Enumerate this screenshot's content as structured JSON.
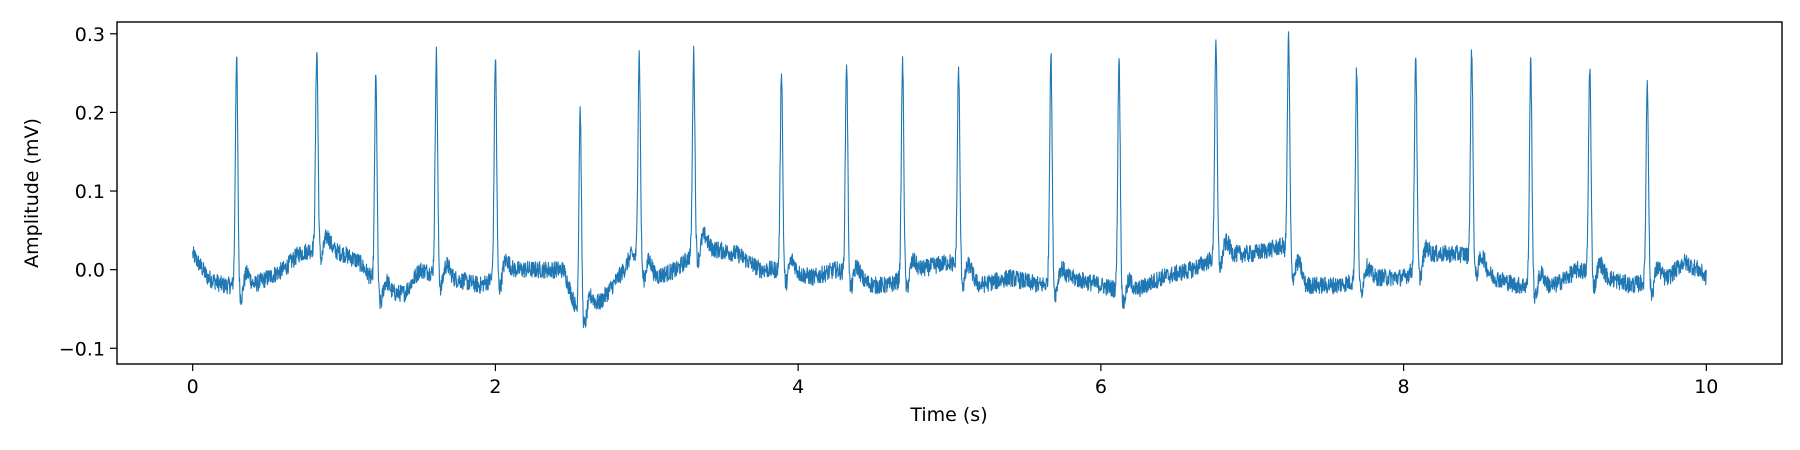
{
  "chart_data": {
    "type": "line",
    "title": "",
    "xlabel": "Time (s)",
    "ylabel": "Amplitude (mV)",
    "xlim": [
      -0.5,
      10.5
    ],
    "ylim": [
      -0.12,
      0.315
    ],
    "x_ticks": [
      0,
      2,
      4,
      6,
      8,
      10
    ],
    "x_tick_labels": [
      "0",
      "2",
      "4",
      "6",
      "8",
      "10"
    ],
    "y_ticks": [
      -0.1,
      0.0,
      0.1,
      0.2,
      0.3
    ],
    "y_tick_labels": [
      "−0.1",
      "0.0",
      "0.1",
      "0.2",
      "0.3"
    ],
    "grid": false,
    "legend": "none",
    "line_color": "#1f77b4",
    "series": [
      {
        "x_start": 0.0,
        "x_end": 10.0,
        "r_peaks": [
          {
            "t": 0.29,
            "amp": 0.27
          },
          {
            "t": 0.82,
            "amp": 0.28
          },
          {
            "t": 1.21,
            "amp": 0.245
          },
          {
            "t": 1.61,
            "amp": 0.275
          },
          {
            "t": 2.0,
            "amp": 0.27
          },
          {
            "t": 2.56,
            "amp": 0.205
          },
          {
            "t": 2.95,
            "amp": 0.275
          },
          {
            "t": 3.31,
            "amp": 0.275
          },
          {
            "t": 3.89,
            "amp": 0.255
          },
          {
            "t": 4.32,
            "amp": 0.265
          },
          {
            "t": 4.69,
            "amp": 0.265
          },
          {
            "t": 5.06,
            "amp": 0.255
          },
          {
            "t": 5.67,
            "amp": 0.275
          },
          {
            "t": 6.12,
            "amp": 0.27
          },
          {
            "t": 6.76,
            "amp": 0.295
          },
          {
            "t": 7.24,
            "amp": 0.295
          },
          {
            "t": 7.69,
            "amp": 0.255
          },
          {
            "t": 8.08,
            "amp": 0.275
          },
          {
            "t": 8.45,
            "amp": 0.28
          },
          {
            "t": 8.84,
            "amp": 0.265
          },
          {
            "t": 9.23,
            "amp": 0.26
          },
          {
            "t": 9.61,
            "amp": 0.24
          }
        ],
        "baseline": [
          [
            0.0,
            0.02
          ],
          [
            0.1,
            -0.01
          ],
          [
            0.2,
            -0.02
          ],
          [
            0.4,
            -0.02
          ],
          [
            0.6,
            0.0
          ],
          [
            0.7,
            0.02
          ],
          [
            0.85,
            0.03
          ],
          [
            1.0,
            0.02
          ],
          [
            1.1,
            0.01
          ],
          [
            1.25,
            -0.03
          ],
          [
            1.4,
            -0.03
          ],
          [
            1.5,
            0.0
          ],
          [
            1.7,
            -0.01
          ],
          [
            1.9,
            -0.02
          ],
          [
            2.1,
            0.0
          ],
          [
            2.3,
            0.0
          ],
          [
            2.45,
            0.0
          ],
          [
            2.55,
            -0.06
          ],
          [
            2.7,
            -0.04
          ],
          [
            2.85,
            0.0
          ],
          [
            2.9,
            0.02
          ],
          [
            3.05,
            -0.01
          ],
          [
            3.2,
            0.0
          ],
          [
            3.35,
            0.03
          ],
          [
            3.6,
            0.02
          ],
          [
            3.75,
            0.0
          ],
          [
            3.9,
            0.0
          ],
          [
            4.1,
            -0.01
          ],
          [
            4.25,
            0.0
          ],
          [
            4.5,
            -0.02
          ],
          [
            4.6,
            -0.02
          ],
          [
            4.8,
            0.0
          ],
          [
            5.0,
            0.01
          ],
          [
            5.2,
            -0.02
          ],
          [
            5.4,
            -0.01
          ],
          [
            5.6,
            -0.02
          ],
          [
            5.8,
            -0.01
          ],
          [
            6.0,
            -0.02
          ],
          [
            6.2,
            -0.03
          ],
          [
            6.4,
            -0.01
          ],
          [
            6.6,
            0.0
          ],
          [
            6.8,
            0.02
          ],
          [
            7.0,
            0.02
          ],
          [
            7.2,
            0.03
          ],
          [
            7.35,
            -0.02
          ],
          [
            7.55,
            -0.02
          ],
          [
            7.8,
            -0.01
          ],
          [
            8.0,
            -0.01
          ],
          [
            8.2,
            0.02
          ],
          [
            8.4,
            0.02
          ],
          [
            8.6,
            -0.01
          ],
          [
            8.75,
            -0.02
          ],
          [
            9.0,
            -0.02
          ],
          [
            9.15,
            0.0
          ],
          [
            9.35,
            -0.01
          ],
          [
            9.5,
            -0.02
          ],
          [
            9.75,
            -0.01
          ],
          [
            9.85,
            0.01
          ],
          [
            9.95,
            0.0
          ],
          [
            10.0,
            -0.01
          ]
        ]
      }
    ]
  }
}
